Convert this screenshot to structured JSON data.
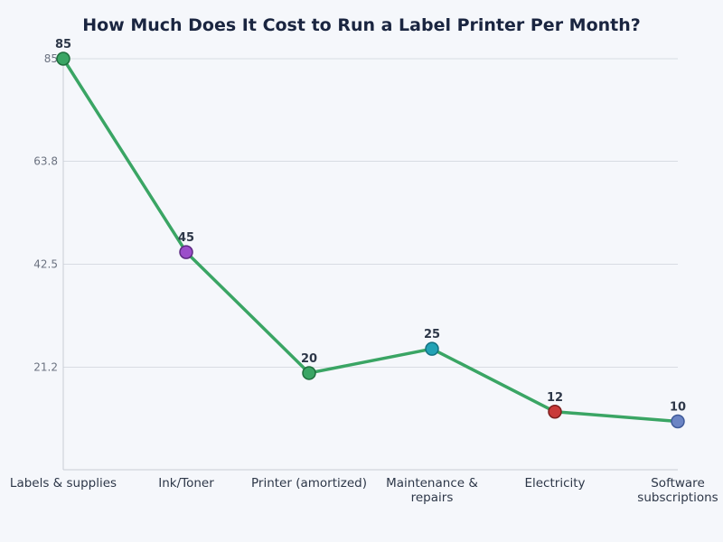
{
  "chart_data": {
    "type": "line",
    "title": "How Much Does It Cost to Run a Label Printer Per Month?",
    "xlabel": "",
    "ylabel": "",
    "categories": [
      [
        "Labels & supplies"
      ],
      [
        "Ink/Toner"
      ],
      [
        "Printer (amortized)"
      ],
      [
        "Maintenance &",
        "repairs"
      ],
      [
        "Electricity"
      ],
      [
        "Software",
        "subscriptions"
      ]
    ],
    "values": [
      85,
      45,
      20,
      25,
      12,
      10
    ],
    "ylim": [
      0,
      85
    ],
    "yticks": [
      "21.2",
      "42.5",
      "63.8",
      "85"
    ],
    "grid": true,
    "line_color": "#3aa564",
    "point_colors": [
      "#3aa564",
      "#9b4dca",
      "#3aa564",
      "#22a2b5",
      "#c93a3a",
      "#6b84c4"
    ],
    "point_stroke_colors": [
      "#1f6e3d",
      "#5d2a82",
      "#1f6e3d",
      "#137080",
      "#7d1f1f",
      "#3f5a99"
    ]
  }
}
